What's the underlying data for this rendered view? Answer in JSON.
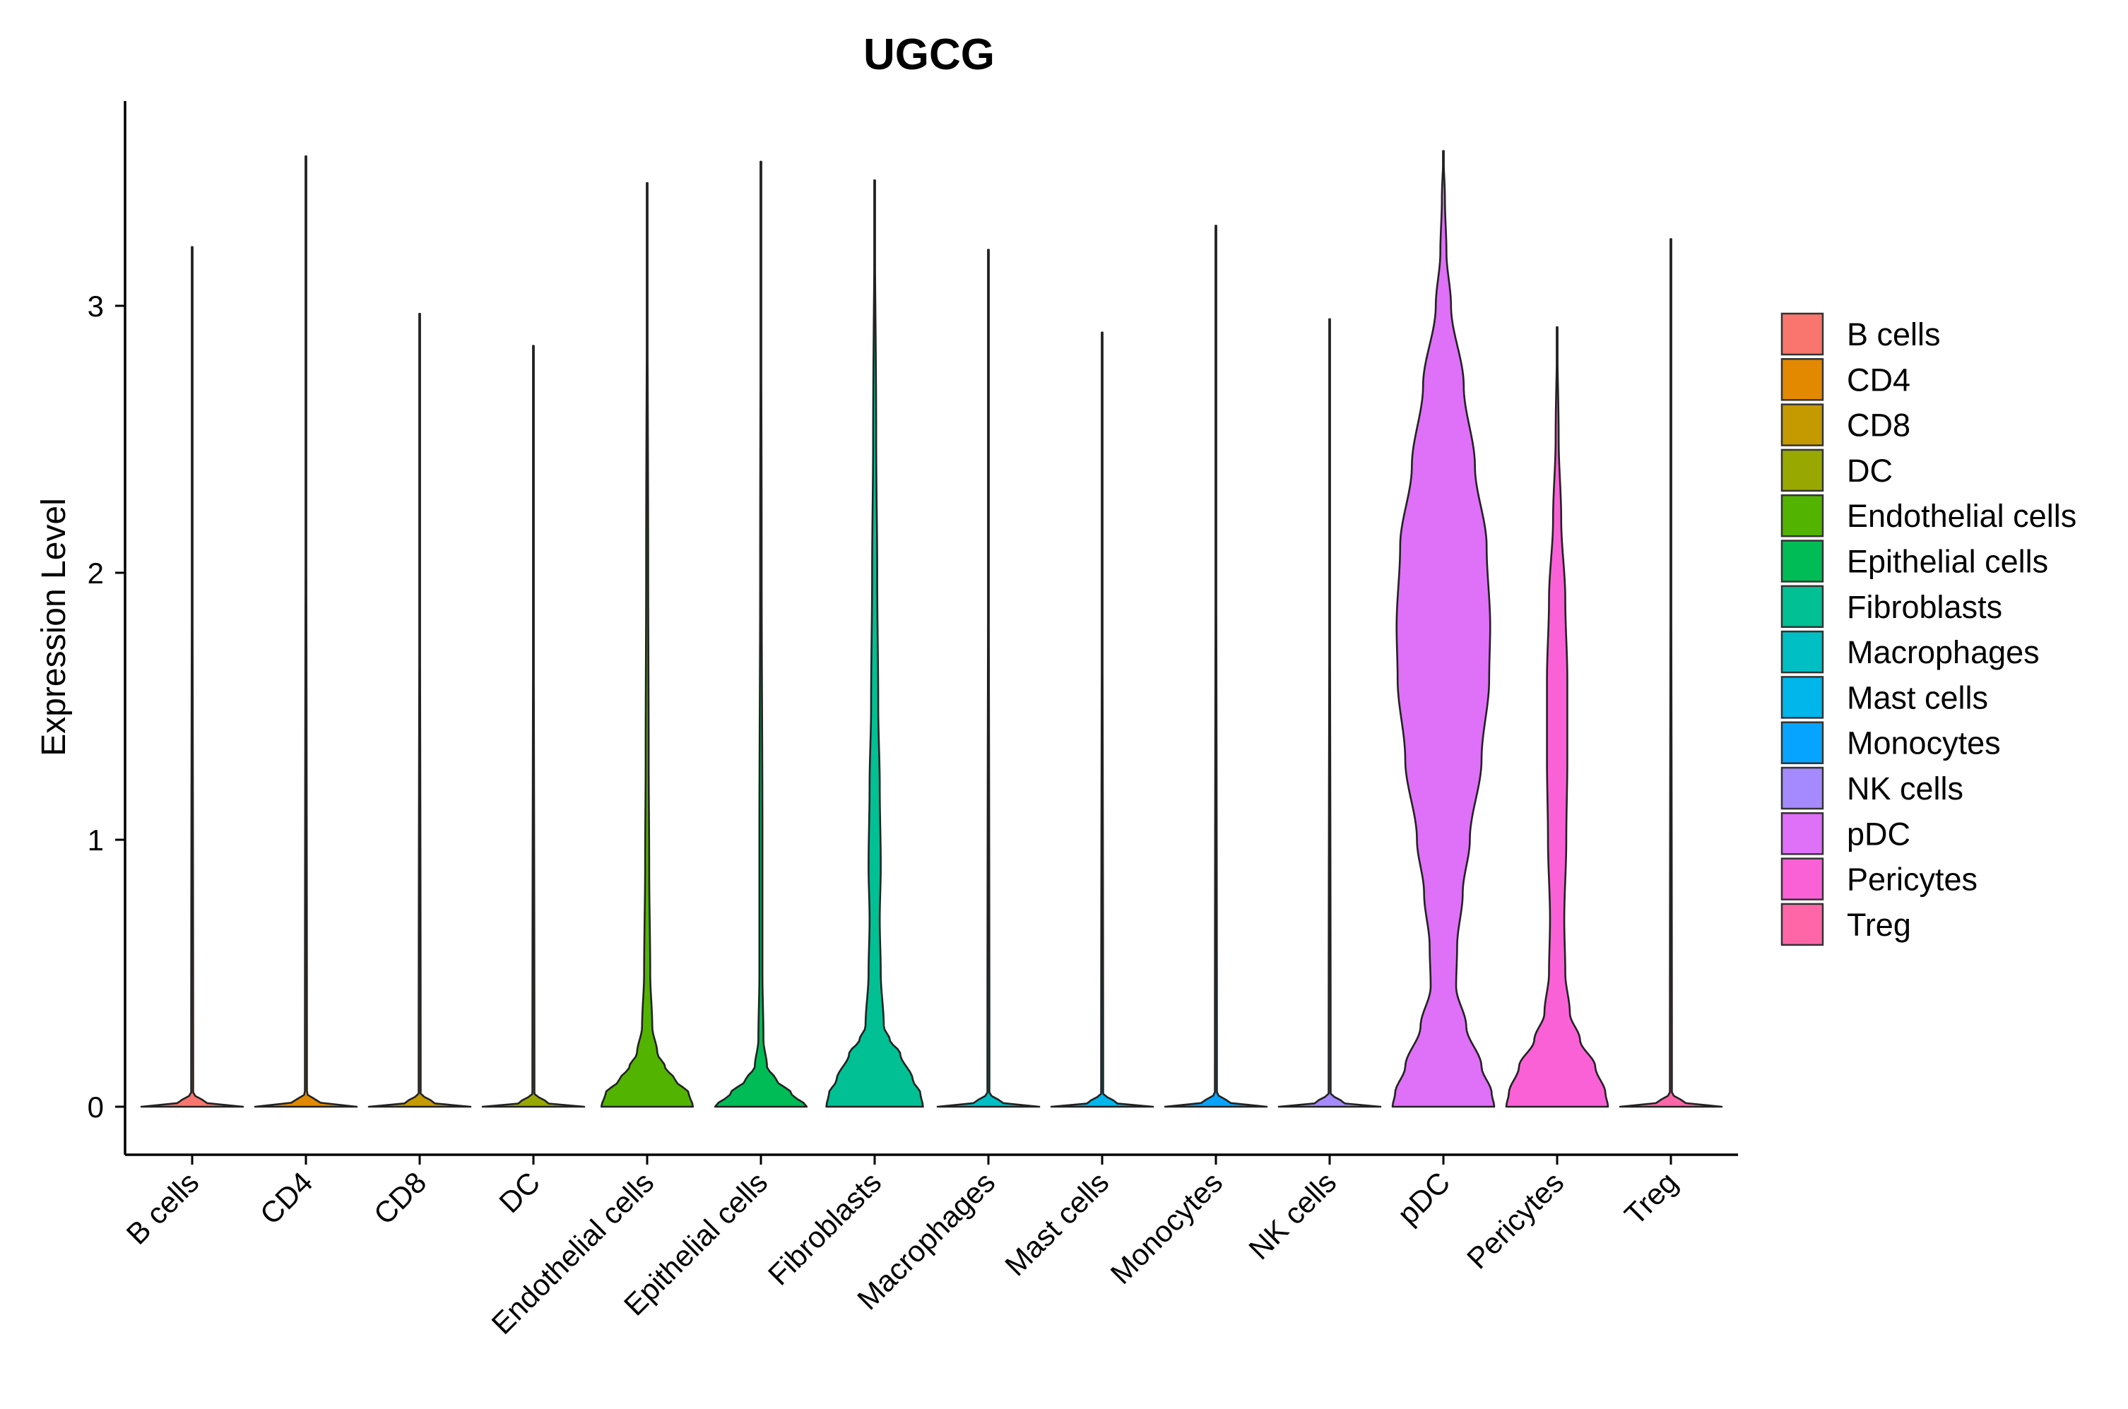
{
  "chart_data": {
    "type": "violin",
    "title": "UGCG",
    "xlabel": "",
    "ylabel": "Expression Level",
    "ylim": [
      -0.18,
      3.75
    ],
    "yticks": [
      0,
      1,
      2,
      3
    ],
    "grid": false,
    "legend": {
      "placement": "right",
      "entries": [
        "B cells",
        "CD4",
        "CD8",
        "DC",
        "Endothelial cells",
        "Epithelial cells",
        "Fibroblasts",
        "Macrophages",
        "Mast cells",
        "Monocytes",
        "NK cells",
        "pDC",
        "Pericytes",
        "Treg"
      ]
    },
    "categories": [
      "B cells",
      "CD4",
      "CD8",
      "DC",
      "Endothelial cells",
      "Epithelial cells",
      "Fibroblasts",
      "Macrophages",
      "Mast cells",
      "Monocytes",
      "NK cells",
      "pDC",
      "Pericytes",
      "Treg"
    ],
    "colors": [
      "#F8766D",
      "#E38900",
      "#C49A00",
      "#99A800",
      "#53B400",
      "#00BC56",
      "#00C094",
      "#00BFC4",
      "#00B6EB",
      "#06A4FF",
      "#A58AFF",
      "#DF70F8",
      "#FB61D7",
      "#FF66A8"
    ],
    "series": [
      {
        "name": "B cells",
        "max": 3.22,
        "profile": [
          [
            0,
            1.0
          ],
          [
            0.01,
            0.3
          ],
          [
            0.05,
            0.02
          ],
          [
            3.22,
            0.0
          ]
        ]
      },
      {
        "name": "CD4",
        "max": 3.56,
        "profile": [
          [
            0,
            1.0
          ],
          [
            0.01,
            0.3
          ],
          [
            0.05,
            0.02
          ],
          [
            3.56,
            0.0
          ]
        ]
      },
      {
        "name": "CD8",
        "max": 2.97,
        "profile": [
          [
            0,
            1.0
          ],
          [
            0.01,
            0.3
          ],
          [
            0.05,
            0.02
          ],
          [
            2.97,
            0.0
          ]
        ]
      },
      {
        "name": "DC",
        "max": 2.85,
        "profile": [
          [
            0,
            1.0
          ],
          [
            0.01,
            0.3
          ],
          [
            0.05,
            0.02
          ],
          [
            2.85,
            0.0
          ]
        ]
      },
      {
        "name": "Endothelial cells",
        "max": 3.46,
        "profile": [
          [
            0,
            0.9
          ],
          [
            0.05,
            0.82
          ],
          [
            0.1,
            0.55
          ],
          [
            0.15,
            0.35
          ],
          [
            0.2,
            0.2
          ],
          [
            0.3,
            0.1
          ],
          [
            0.5,
            0.06
          ],
          [
            0.9,
            0.04
          ],
          [
            1.3,
            0.03
          ],
          [
            2.0,
            0.02
          ],
          [
            3.46,
            0.0
          ]
        ]
      },
      {
        "name": "Epithelial cells",
        "max": 3.54,
        "profile": [
          [
            0,
            0.9
          ],
          [
            0.05,
            0.6
          ],
          [
            0.1,
            0.3
          ],
          [
            0.15,
            0.12
          ],
          [
            0.25,
            0.05
          ],
          [
            0.5,
            0.03
          ],
          [
            1.0,
            0.03
          ],
          [
            2.0,
            0.015
          ],
          [
            3.54,
            0.0
          ]
        ]
      },
      {
        "name": "Fibroblasts",
        "max": 3.47,
        "profile": [
          [
            0,
            0.95
          ],
          [
            0.05,
            0.9
          ],
          [
            0.1,
            0.75
          ],
          [
            0.2,
            0.5
          ],
          [
            0.25,
            0.3
          ],
          [
            0.3,
            0.18
          ],
          [
            0.5,
            0.12
          ],
          [
            0.7,
            0.1
          ],
          [
            0.9,
            0.12
          ],
          [
            1.2,
            0.1
          ],
          [
            1.5,
            0.07
          ],
          [
            2.0,
            0.05
          ],
          [
            2.5,
            0.03
          ],
          [
            3.47,
            0.0
          ]
        ]
      },
      {
        "name": "Macrophages",
        "max": 3.21,
        "profile": [
          [
            0,
            1.0
          ],
          [
            0.01,
            0.3
          ],
          [
            0.05,
            0.02
          ],
          [
            3.21,
            0.0
          ]
        ]
      },
      {
        "name": "Mast cells",
        "max": 2.9,
        "profile": [
          [
            0,
            1.0
          ],
          [
            0.01,
            0.3
          ],
          [
            0.05,
            0.02
          ],
          [
            2.9,
            0.0
          ]
        ]
      },
      {
        "name": "Monocytes",
        "max": 3.3,
        "profile": [
          [
            0,
            1.0
          ],
          [
            0.01,
            0.3
          ],
          [
            0.05,
            0.02
          ],
          [
            3.3,
            0.0
          ]
        ]
      },
      {
        "name": "NK cells",
        "max": 2.95,
        "profile": [
          [
            0,
            1.0
          ],
          [
            0.01,
            0.3
          ],
          [
            0.05,
            0.02
          ],
          [
            2.95,
            0.0
          ]
        ]
      },
      {
        "name": "pDC",
        "max": 3.58,
        "profile": [
          [
            0,
            1.0
          ],
          [
            0.05,
            0.95
          ],
          [
            0.15,
            0.75
          ],
          [
            0.3,
            0.45
          ],
          [
            0.45,
            0.25
          ],
          [
            0.6,
            0.27
          ],
          [
            0.8,
            0.38
          ],
          [
            1.0,
            0.52
          ],
          [
            1.3,
            0.75
          ],
          [
            1.6,
            0.9
          ],
          [
            1.8,
            0.92
          ],
          [
            2.1,
            0.85
          ],
          [
            2.4,
            0.62
          ],
          [
            2.7,
            0.4
          ],
          [
            3.0,
            0.15
          ],
          [
            3.2,
            0.06
          ],
          [
            3.4,
            0.03
          ],
          [
            3.58,
            0.0
          ]
        ]
      },
      {
        "name": "Pericytes",
        "max": 2.92,
        "profile": [
          [
            0,
            1.0
          ],
          [
            0.05,
            0.95
          ],
          [
            0.15,
            0.75
          ],
          [
            0.25,
            0.45
          ],
          [
            0.35,
            0.25
          ],
          [
            0.5,
            0.16
          ],
          [
            0.7,
            0.14
          ],
          [
            1.0,
            0.18
          ],
          [
            1.3,
            0.2
          ],
          [
            1.6,
            0.2
          ],
          [
            1.9,
            0.16
          ],
          [
            2.2,
            0.08
          ],
          [
            2.5,
            0.03
          ],
          [
            2.92,
            0.0
          ]
        ]
      },
      {
        "name": "Treg",
        "max": 3.25,
        "profile": [
          [
            0,
            1.0
          ],
          [
            0.01,
            0.3
          ],
          [
            0.05,
            0.02
          ],
          [
            3.25,
            0.0
          ]
        ]
      }
    ]
  }
}
